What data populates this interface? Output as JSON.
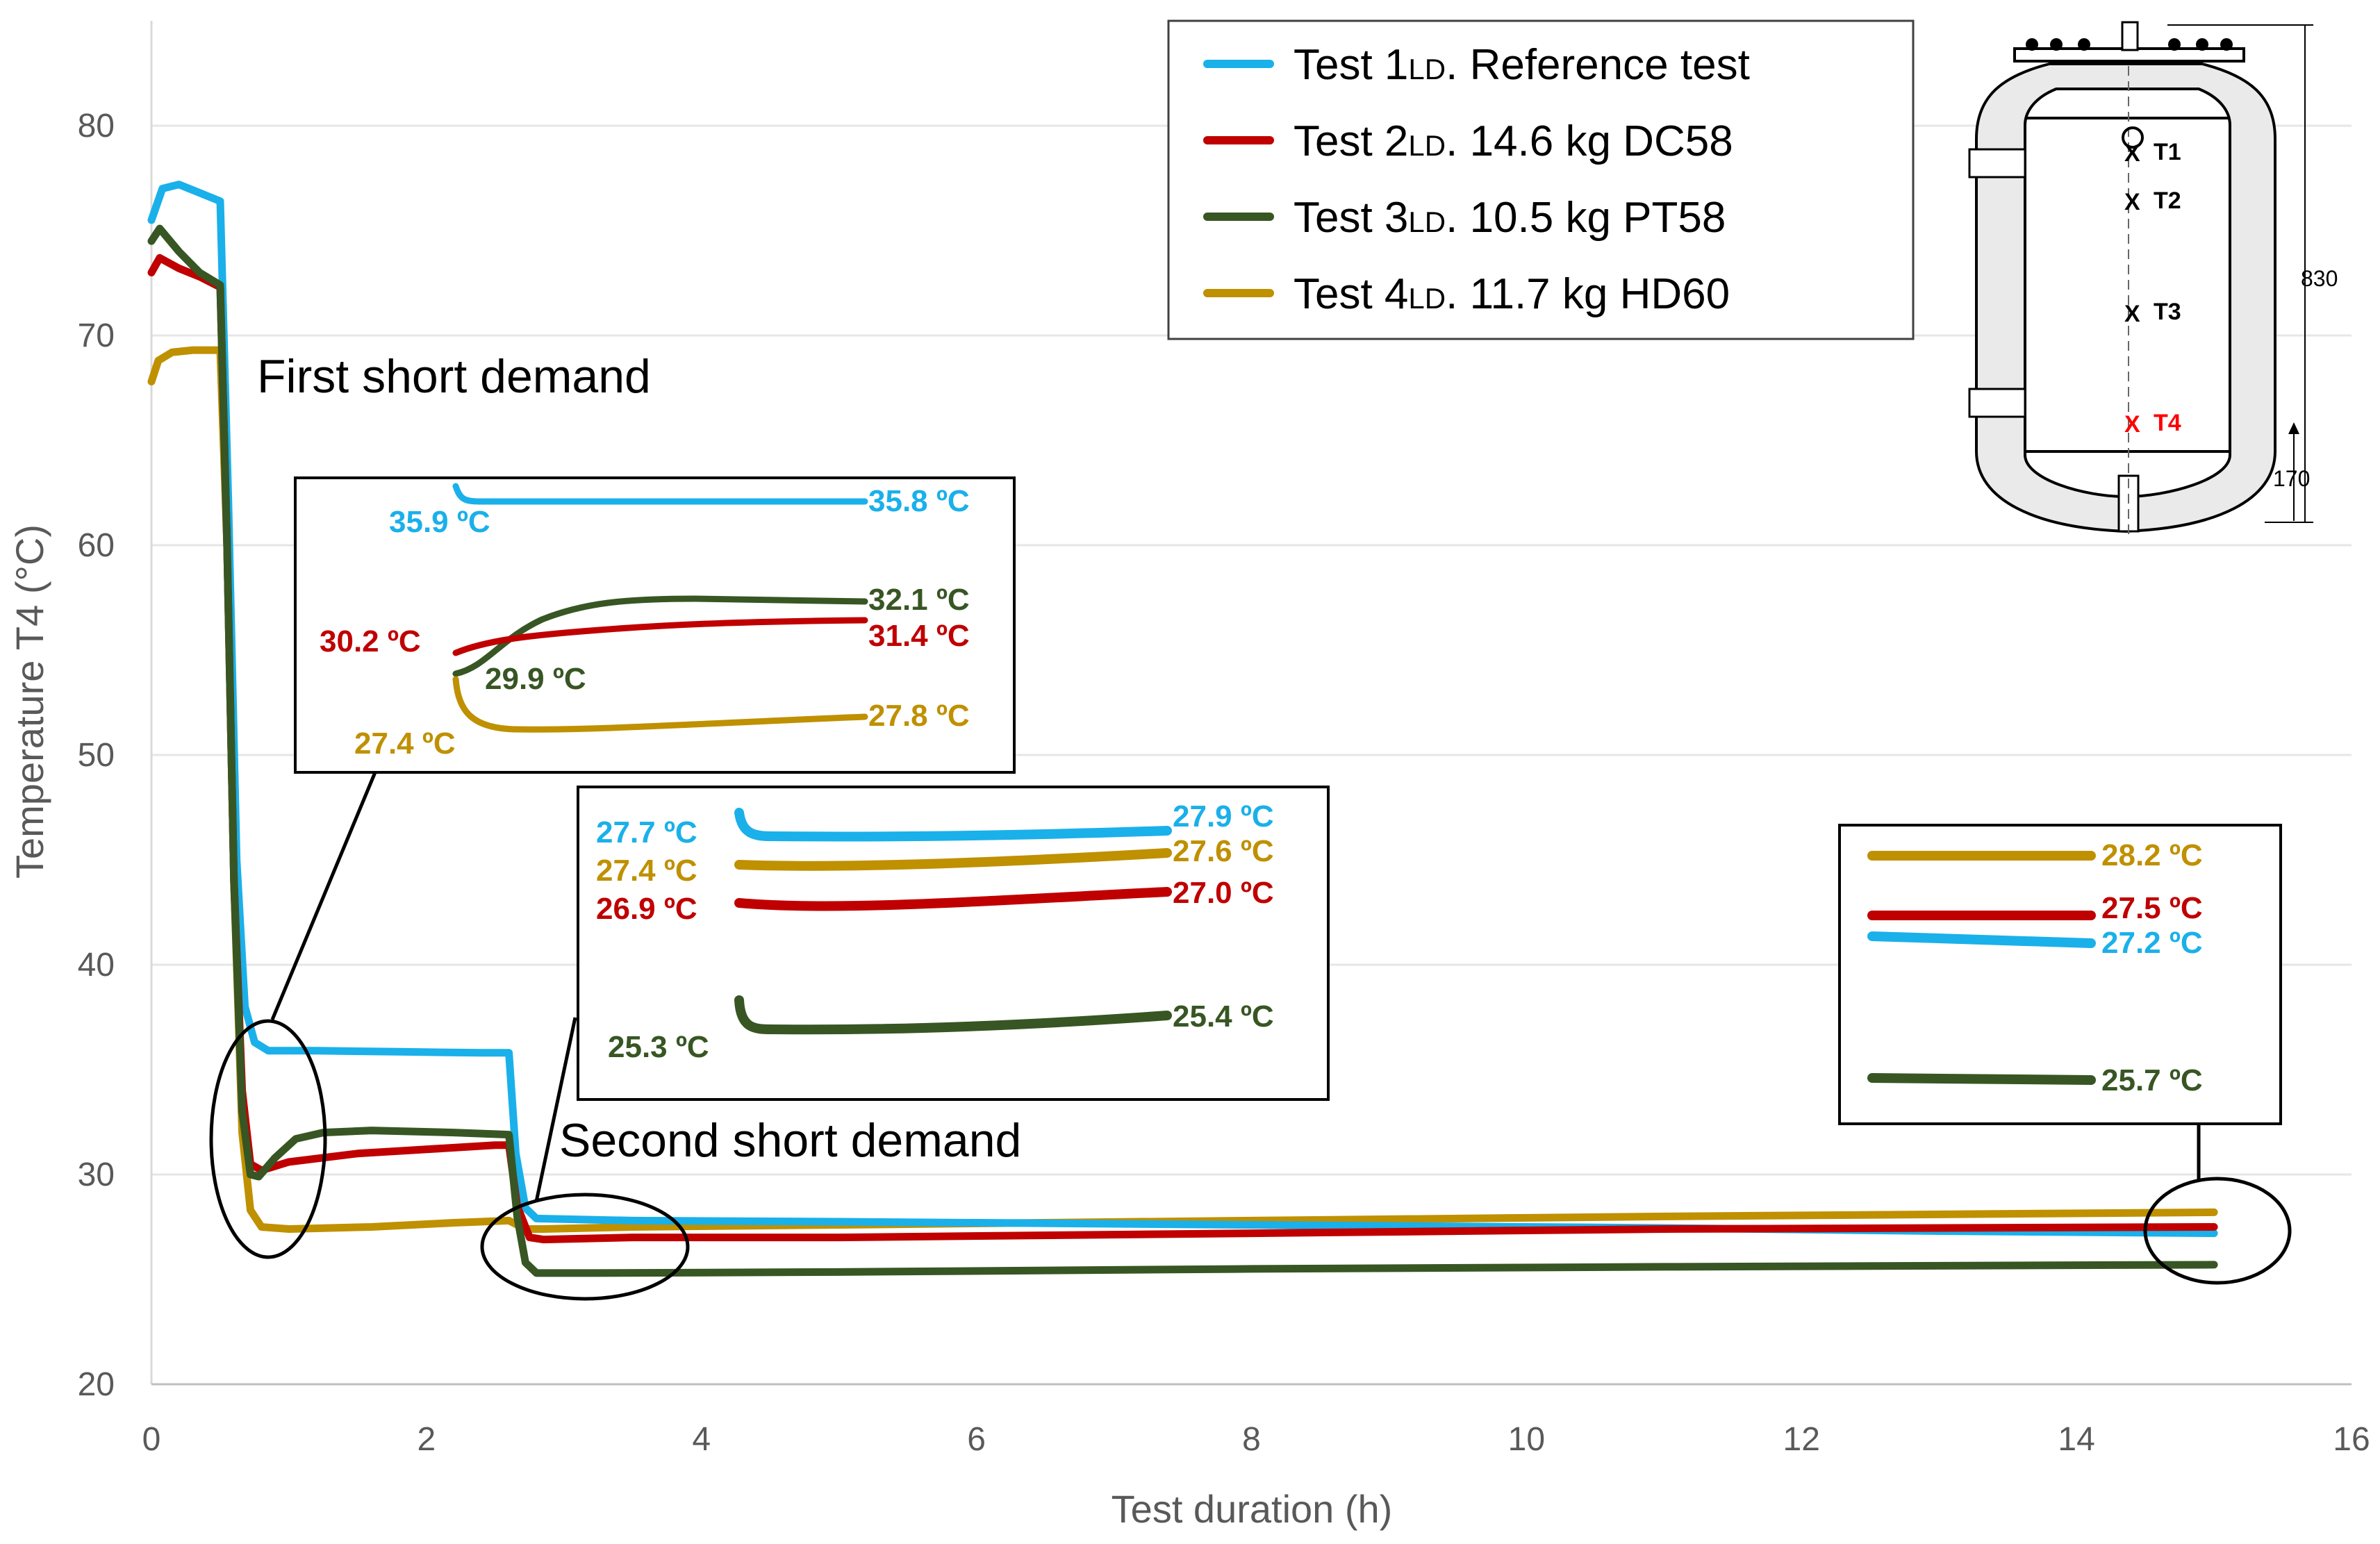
{
  "chart_data": {
    "type": "line",
    "xlabel": "Test duration (h)",
    "ylabel": "Temperature T4 (°C)",
    "xlim": [
      0,
      16
    ],
    "ylim": [
      20,
      85
    ],
    "xticks": [
      0,
      2,
      4,
      6,
      8,
      10,
      12,
      14,
      16
    ],
    "yticks": [
      20,
      30,
      40,
      50,
      60,
      70,
      80
    ],
    "grid": "horizontal",
    "legend_position": "top-right",
    "series": [
      {
        "name": "Test 1LD. Reference test",
        "legend_main": "Test 1",
        "legend_sub": "LD",
        "legend_rest": ". Reference test",
        "color": "#1ab0ea",
        "points": [
          [
            0,
            75.5
          ],
          [
            0.08,
            77.0
          ],
          [
            0.2,
            77.2
          ],
          [
            0.35,
            76.8
          ],
          [
            0.5,
            76.4
          ],
          [
            0.56,
            62
          ],
          [
            0.62,
            45
          ],
          [
            0.68,
            38
          ],
          [
            0.75,
            36.3
          ],
          [
            0.85,
            35.9
          ],
          [
            1.2,
            35.9
          ],
          [
            1.8,
            35.85
          ],
          [
            2.4,
            35.8
          ],
          [
            2.6,
            35.8
          ],
          [
            2.65,
            31
          ],
          [
            2.72,
            28.4
          ],
          [
            2.8,
            27.9
          ],
          [
            3.5,
            27.8
          ],
          [
            5,
            27.75
          ],
          [
            8,
            27.6
          ],
          [
            11,
            27.45
          ],
          [
            13,
            27.3
          ],
          [
            15,
            27.2
          ]
        ]
      },
      {
        "name": "Test 2LD. 14.6 kg DC58",
        "legend_main": "Test 2",
        "legend_sub": "LD",
        "legend_rest": ". 14.6 kg DC58",
        "color": "#c00000",
        "points": [
          [
            0,
            73.0
          ],
          [
            0.06,
            73.7
          ],
          [
            0.2,
            73.2
          ],
          [
            0.35,
            72.8
          ],
          [
            0.5,
            72.3
          ],
          [
            0.55,
            60
          ],
          [
            0.6,
            44
          ],
          [
            0.66,
            34
          ],
          [
            0.72,
            30.5
          ],
          [
            0.8,
            30.2
          ],
          [
            1.0,
            30.6
          ],
          [
            1.5,
            31.0
          ],
          [
            2.0,
            31.2
          ],
          [
            2.5,
            31.4
          ],
          [
            2.6,
            31.4
          ],
          [
            2.66,
            28.5
          ],
          [
            2.75,
            27.0
          ],
          [
            2.85,
            26.9
          ],
          [
            3.5,
            27.0
          ],
          [
            5,
            27.0
          ],
          [
            8,
            27.2
          ],
          [
            11,
            27.4
          ],
          [
            15,
            27.5
          ]
        ]
      },
      {
        "name": "Test 3LD. 10.5 kg PT58",
        "legend_main": "Test 3",
        "legend_sub": "LD",
        "legend_rest": ". 10.5 kg PT58",
        "color": "#375623",
        "points": [
          [
            0,
            74.5
          ],
          [
            0.06,
            75.1
          ],
          [
            0.2,
            74.0
          ],
          [
            0.35,
            73.0
          ],
          [
            0.5,
            72.4
          ],
          [
            0.55,
            60
          ],
          [
            0.6,
            44
          ],
          [
            0.66,
            33
          ],
          [
            0.72,
            30.0
          ],
          [
            0.78,
            29.9
          ],
          [
            0.9,
            30.8
          ],
          [
            1.05,
            31.7
          ],
          [
            1.25,
            32.0
          ],
          [
            1.6,
            32.1
          ],
          [
            2.2,
            32.0
          ],
          [
            2.6,
            31.9
          ],
          [
            2.66,
            28
          ],
          [
            2.72,
            25.8
          ],
          [
            2.8,
            25.3
          ],
          [
            3.2,
            25.3
          ],
          [
            5,
            25.35
          ],
          [
            8,
            25.5
          ],
          [
            11,
            25.6
          ],
          [
            15,
            25.7
          ]
        ]
      },
      {
        "name": "Test 4LD. 11.7 kg HD60",
        "legend_main": "Test 4",
        "legend_sub": "LD",
        "legend_rest": ". 11.7 kg HD60",
        "color": "#bf9000",
        "points": [
          [
            0,
            67.8
          ],
          [
            0.05,
            68.8
          ],
          [
            0.15,
            69.2
          ],
          [
            0.3,
            69.3
          ],
          [
            0.5,
            69.3
          ],
          [
            0.55,
            60
          ],
          [
            0.6,
            44
          ],
          [
            0.66,
            32
          ],
          [
            0.72,
            28.3
          ],
          [
            0.8,
            27.5
          ],
          [
            1.0,
            27.4
          ],
          [
            1.6,
            27.5
          ],
          [
            2.2,
            27.7
          ],
          [
            2.6,
            27.8
          ],
          [
            2.66,
            27.6
          ],
          [
            2.72,
            27.4
          ],
          [
            2.85,
            27.4
          ],
          [
            3.5,
            27.5
          ],
          [
            5,
            27.6
          ],
          [
            8,
            27.8
          ],
          [
            11,
            28.0
          ],
          [
            15,
            28.2
          ]
        ]
      }
    ],
    "annotations": [
      {
        "text": "First short demand"
      },
      {
        "text": "Second short demand"
      }
    ],
    "insets": [
      {
        "labels": [
          {
            "text": "35.9 ºC",
            "color": "#1ab0ea"
          },
          {
            "text": "35.8  ºC",
            "color": "#1ab0ea"
          },
          {
            "text": "32.1  ºC",
            "color": "#375623"
          },
          {
            "text": "31.4  ºC",
            "color": "#c00000"
          },
          {
            "text": "30.2  ºC",
            "color": "#c00000"
          },
          {
            "text": "29.9  ºC",
            "color": "#375623"
          },
          {
            "text": "27.4  ºC",
            "color": "#bf9000"
          },
          {
            "text": "27.8  ºC",
            "color": "#bf9000"
          }
        ]
      },
      {
        "labels": [
          {
            "text": "27.7  ºC",
            "color": "#1ab0ea"
          },
          {
            "text": "27.4  ºC",
            "color": "#bf9000"
          },
          {
            "text": "26.9  ºC",
            "color": "#c00000"
          },
          {
            "text": "25.3  ºC",
            "color": "#375623"
          },
          {
            "text": "27.9  ºC",
            "color": "#1ab0ea"
          },
          {
            "text": "27.6  ºC",
            "color": "#bf9000"
          },
          {
            "text": "27.0  ºC",
            "color": "#c00000"
          },
          {
            "text": "25.4  ºC",
            "color": "#375623"
          }
        ]
      },
      {
        "labels": [
          {
            "text": "28.2  ºC",
            "color": "#bf9000"
          },
          {
            "text": "27.5  ºC",
            "color": "#c00000"
          },
          {
            "text": "27.2  ºC",
            "color": "#1ab0ea"
          },
          {
            "text": "25.7  ºC",
            "color": "#375623"
          }
        ]
      }
    ],
    "tank_diagram": {
      "sensors": [
        "T1",
        "T2",
        "T3",
        "T4"
      ],
      "marker": "X",
      "dim_height": "830",
      "dim_bottom": "170"
    }
  }
}
